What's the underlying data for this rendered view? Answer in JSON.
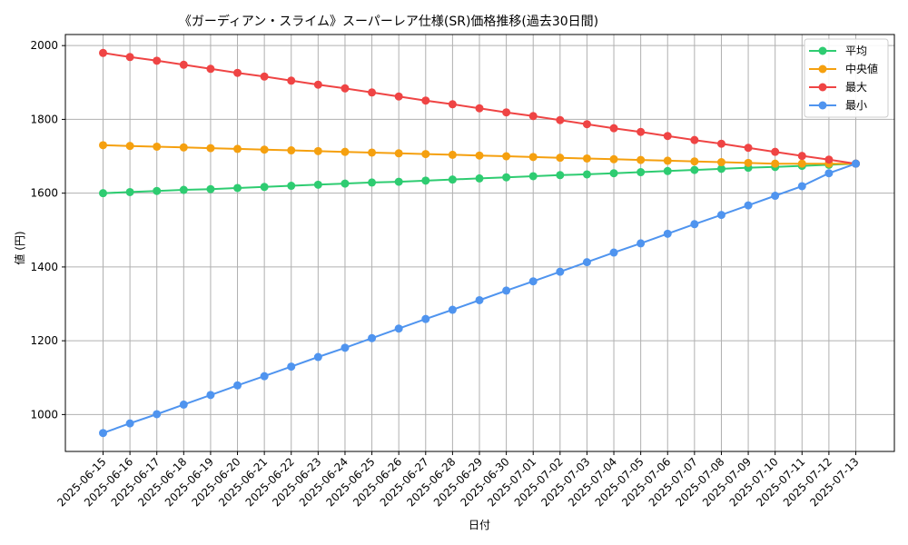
{
  "chart_data": {
    "type": "line",
    "title": "《ガーディアン・スライム》スーパーレア仕様(SR)価格推移(過去30日間)",
    "xlabel": "日付",
    "ylabel": "値 (円)",
    "ylim": [
      900,
      2030
    ],
    "yticks": [
      1000,
      1200,
      1400,
      1600,
      1800,
      2000
    ],
    "grid": true,
    "legend_position": "top-right",
    "categories": [
      "2025-06-15",
      "2025-06-16",
      "2025-06-17",
      "2025-06-18",
      "2025-06-19",
      "2025-06-20",
      "2025-06-21",
      "2025-06-22",
      "2025-06-23",
      "2025-06-24",
      "2025-06-25",
      "2025-06-26",
      "2025-06-27",
      "2025-06-28",
      "2025-06-29",
      "2025-06-30",
      "2025-07-01",
      "2025-07-02",
      "2025-07-03",
      "2025-07-04",
      "2025-07-05",
      "2025-07-06",
      "2025-07-07",
      "2025-07-08",
      "2025-07-09",
      "2025-07-10",
      "2025-07-11",
      "2025-07-12",
      "2025-07-13"
    ],
    "series": [
      {
        "name": "平均",
        "color": "#2ecc71",
        "values": [
          1600,
          1603,
          1606,
          1609,
          1611,
          1614,
          1617,
          1620,
          1623,
          1626,
          1629,
          1631,
          1634,
          1637,
          1640,
          1643,
          1646,
          1649,
          1651,
          1654,
          1657,
          1660,
          1663,
          1666,
          1669,
          1671,
          1674,
          1677,
          1680
        ]
      },
      {
        "name": "中央値",
        "color": "#f5a00f",
        "values": [
          1730,
          1728,
          1726,
          1724,
          1722,
          1720,
          1718,
          1716,
          1714,
          1712,
          1710,
          1708,
          1706,
          1704,
          1702,
          1700,
          1698,
          1696,
          1694,
          1692,
          1690,
          1688,
          1686,
          1684,
          1682,
          1680,
          1680,
          1680,
          1680
        ]
      },
      {
        "name": "最大",
        "color": "#ef4444",
        "values": [
          1980,
          1969,
          1959,
          1948,
          1937,
          1926,
          1916,
          1905,
          1894,
          1884,
          1873,
          1862,
          1851,
          1841,
          1830,
          1819,
          1809,
          1798,
          1787,
          1776,
          1766,
          1755,
          1744,
          1734,
          1723,
          1712,
          1701,
          1691,
          1680
        ]
      },
      {
        "name": "最小",
        "color": "#4f94ef",
        "values": [
          950,
          976,
          1001,
          1027,
          1053,
          1079,
          1104,
          1130,
          1156,
          1181,
          1207,
          1233,
          1259,
          1284,
          1310,
          1336,
          1361,
          1387,
          1413,
          1439,
          1464,
          1490,
          1516,
          1541,
          1567,
          1593,
          1619,
          1654,
          1680
        ]
      }
    ]
  }
}
